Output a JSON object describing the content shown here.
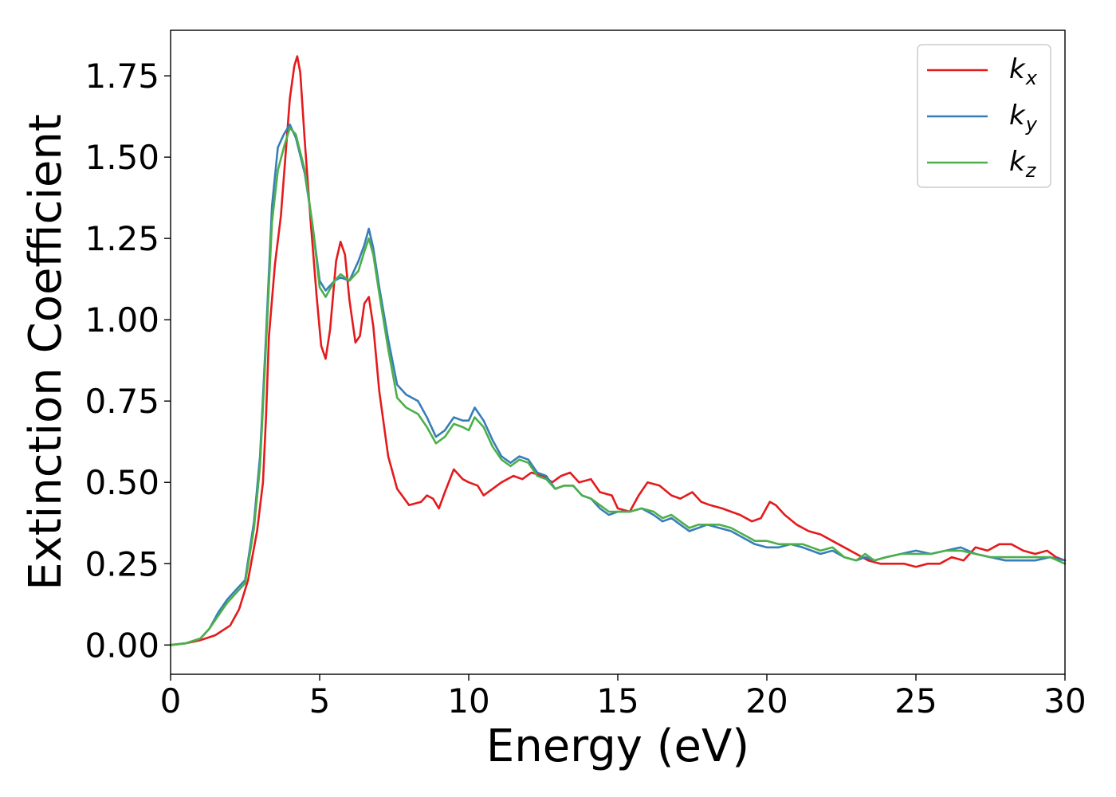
{
  "chart_data": {
    "type": "line",
    "xlabel": "Energy (eV)",
    "ylabel": "Extinction Coefficient",
    "xlim": [
      0,
      30
    ],
    "ylim": [
      -0.09,
      1.89
    ],
    "xticks": [
      0,
      5,
      10,
      15,
      20,
      25,
      30
    ],
    "xtick_labels": [
      "0",
      "5",
      "10",
      "15",
      "20",
      "25",
      "30"
    ],
    "yticks": [
      0.0,
      0.25,
      0.5,
      0.75,
      1.0,
      1.25,
      1.5,
      1.75
    ],
    "ytick_labels": [
      "0.00",
      "0.25",
      "0.50",
      "0.75",
      "1.00",
      "1.25",
      "1.50",
      "1.75"
    ],
    "grid": false,
    "legend_position": "top-right",
    "series": [
      {
        "name": "k_x",
        "label_base": "k",
        "label_sub": "x",
        "color": "#e41a1c",
        "points": [
          [
            0,
            0
          ],
          [
            0.5,
            0.005
          ],
          [
            1,
            0.015
          ],
          [
            1.5,
            0.03
          ],
          [
            2,
            0.06
          ],
          [
            2.3,
            0.11
          ],
          [
            2.6,
            0.2
          ],
          [
            2.9,
            0.35
          ],
          [
            3.1,
            0.5
          ],
          [
            3.2,
            0.7
          ],
          [
            3.3,
            0.95
          ],
          [
            3.5,
            1.17
          ],
          [
            3.7,
            1.32
          ],
          [
            3.85,
            1.5
          ],
          [
            4.0,
            1.68
          ],
          [
            4.15,
            1.78
          ],
          [
            4.25,
            1.81
          ],
          [
            4.35,
            1.76
          ],
          [
            4.5,
            1.55
          ],
          [
            4.7,
            1.3
          ],
          [
            4.9,
            1.07
          ],
          [
            5.05,
            0.92
          ],
          [
            5.2,
            0.88
          ],
          [
            5.35,
            0.97
          ],
          [
            5.55,
            1.18
          ],
          [
            5.7,
            1.24
          ],
          [
            5.85,
            1.2
          ],
          [
            6.0,
            1.06
          ],
          [
            6.2,
            0.93
          ],
          [
            6.35,
            0.95
          ],
          [
            6.5,
            1.05
          ],
          [
            6.65,
            1.07
          ],
          [
            6.8,
            0.98
          ],
          [
            7.0,
            0.78
          ],
          [
            7.3,
            0.58
          ],
          [
            7.6,
            0.48
          ],
          [
            8.0,
            0.43
          ],
          [
            8.4,
            0.44
          ],
          [
            8.6,
            0.46
          ],
          [
            8.8,
            0.45
          ],
          [
            9.0,
            0.42
          ],
          [
            9.2,
            0.47
          ],
          [
            9.5,
            0.54
          ],
          [
            9.8,
            0.51
          ],
          [
            10.0,
            0.5
          ],
          [
            10.3,
            0.49
          ],
          [
            10.5,
            0.46
          ],
          [
            10.8,
            0.48
          ],
          [
            11.1,
            0.5
          ],
          [
            11.5,
            0.52
          ],
          [
            11.8,
            0.51
          ],
          [
            12.1,
            0.53
          ],
          [
            12.5,
            0.52
          ],
          [
            12.8,
            0.5
          ],
          [
            13.1,
            0.52
          ],
          [
            13.4,
            0.53
          ],
          [
            13.7,
            0.5
          ],
          [
            14.1,
            0.51
          ],
          [
            14.4,
            0.47
          ],
          [
            14.8,
            0.46
          ],
          [
            15.0,
            0.42
          ],
          [
            15.4,
            0.41
          ],
          [
            15.7,
            0.46
          ],
          [
            16.0,
            0.5
          ],
          [
            16.4,
            0.49
          ],
          [
            16.8,
            0.46
          ],
          [
            17.1,
            0.45
          ],
          [
            17.5,
            0.47
          ],
          [
            17.8,
            0.44
          ],
          [
            18.1,
            0.43
          ],
          [
            18.5,
            0.42
          ],
          [
            18.8,
            0.41
          ],
          [
            19.1,
            0.4
          ],
          [
            19.5,
            0.38
          ],
          [
            19.8,
            0.39
          ],
          [
            20.1,
            0.44
          ],
          [
            20.3,
            0.43
          ],
          [
            20.6,
            0.4
          ],
          [
            21.0,
            0.37
          ],
          [
            21.4,
            0.35
          ],
          [
            21.8,
            0.34
          ],
          [
            22.2,
            0.32
          ],
          [
            22.6,
            0.3
          ],
          [
            23.0,
            0.28
          ],
          [
            23.4,
            0.26
          ],
          [
            23.8,
            0.25
          ],
          [
            24.2,
            0.25
          ],
          [
            24.6,
            0.25
          ],
          [
            25.0,
            0.24
          ],
          [
            25.4,
            0.25
          ],
          [
            25.8,
            0.25
          ],
          [
            26.2,
            0.27
          ],
          [
            26.6,
            0.26
          ],
          [
            27.0,
            0.3
          ],
          [
            27.4,
            0.29
          ],
          [
            27.8,
            0.31
          ],
          [
            28.2,
            0.31
          ],
          [
            28.6,
            0.29
          ],
          [
            29.0,
            0.28
          ],
          [
            29.4,
            0.29
          ],
          [
            29.7,
            0.27
          ],
          [
            30.0,
            0.26
          ]
        ]
      },
      {
        "name": "k_y",
        "label_base": "k",
        "label_sub": "y",
        "color": "#377eb8",
        "points": [
          [
            0,
            0
          ],
          [
            0.5,
            0.005
          ],
          [
            1,
            0.02
          ],
          [
            1.3,
            0.05
          ],
          [
            1.6,
            0.1
          ],
          [
            1.9,
            0.14
          ],
          [
            2.2,
            0.17
          ],
          [
            2.5,
            0.2
          ],
          [
            2.8,
            0.38
          ],
          [
            3.0,
            0.58
          ],
          [
            3.2,
            0.95
          ],
          [
            3.4,
            1.35
          ],
          [
            3.6,
            1.53
          ],
          [
            3.8,
            1.57
          ],
          [
            4.0,
            1.6
          ],
          [
            4.2,
            1.56
          ],
          [
            4.5,
            1.45
          ],
          [
            4.75,
            1.3
          ],
          [
            5.0,
            1.12
          ],
          [
            5.2,
            1.09
          ],
          [
            5.5,
            1.12
          ],
          [
            5.7,
            1.13
          ],
          [
            6.0,
            1.12
          ],
          [
            6.3,
            1.18
          ],
          [
            6.5,
            1.23
          ],
          [
            6.65,
            1.28
          ],
          [
            6.8,
            1.22
          ],
          [
            7.0,
            1.1
          ],
          [
            7.3,
            0.94
          ],
          [
            7.6,
            0.8
          ],
          [
            7.9,
            0.77
          ],
          [
            8.3,
            0.75
          ],
          [
            8.6,
            0.7
          ],
          [
            8.9,
            0.64
          ],
          [
            9.2,
            0.66
          ],
          [
            9.5,
            0.7
          ],
          [
            9.8,
            0.69
          ],
          [
            10.0,
            0.69
          ],
          [
            10.2,
            0.73
          ],
          [
            10.5,
            0.69
          ],
          [
            10.8,
            0.63
          ],
          [
            11.1,
            0.58
          ],
          [
            11.4,
            0.56
          ],
          [
            11.7,
            0.58
          ],
          [
            12.0,
            0.57
          ],
          [
            12.3,
            0.53
          ],
          [
            12.6,
            0.52
          ],
          [
            12.9,
            0.48
          ],
          [
            13.2,
            0.49
          ],
          [
            13.5,
            0.49
          ],
          [
            13.8,
            0.46
          ],
          [
            14.1,
            0.45
          ],
          [
            14.4,
            0.42
          ],
          [
            14.7,
            0.4
          ],
          [
            15.0,
            0.41
          ],
          [
            15.4,
            0.41
          ],
          [
            15.8,
            0.42
          ],
          [
            16.2,
            0.4
          ],
          [
            16.5,
            0.38
          ],
          [
            16.8,
            0.39
          ],
          [
            17.1,
            0.37
          ],
          [
            17.4,
            0.35
          ],
          [
            17.7,
            0.36
          ],
          [
            18.0,
            0.37
          ],
          [
            18.4,
            0.36
          ],
          [
            18.8,
            0.35
          ],
          [
            19.2,
            0.33
          ],
          [
            19.6,
            0.31
          ],
          [
            20.0,
            0.3
          ],
          [
            20.4,
            0.3
          ],
          [
            20.8,
            0.31
          ],
          [
            21.2,
            0.3
          ],
          [
            21.5,
            0.29
          ],
          [
            21.8,
            0.28
          ],
          [
            22.2,
            0.29
          ],
          [
            22.6,
            0.27
          ],
          [
            23.0,
            0.26
          ],
          [
            23.3,
            0.27
          ],
          [
            23.6,
            0.26
          ],
          [
            24.0,
            0.27
          ],
          [
            24.5,
            0.28
          ],
          [
            25.0,
            0.29
          ],
          [
            25.5,
            0.28
          ],
          [
            26.0,
            0.29
          ],
          [
            26.5,
            0.3
          ],
          [
            27.0,
            0.28
          ],
          [
            27.5,
            0.27
          ],
          [
            28.0,
            0.26
          ],
          [
            28.5,
            0.26
          ],
          [
            29.0,
            0.26
          ],
          [
            29.5,
            0.27
          ],
          [
            30.0,
            0.26
          ]
        ]
      },
      {
        "name": "k_z",
        "label_base": "k",
        "label_sub": "z",
        "color": "#4daf4a",
        "points": [
          [
            0,
            0
          ],
          [
            0.5,
            0.005
          ],
          [
            1,
            0.02
          ],
          [
            1.3,
            0.05
          ],
          [
            1.6,
            0.09
          ],
          [
            1.9,
            0.13
          ],
          [
            2.2,
            0.16
          ],
          [
            2.5,
            0.19
          ],
          [
            2.8,
            0.36
          ],
          [
            3.0,
            0.55
          ],
          [
            3.2,
            0.92
          ],
          [
            3.4,
            1.3
          ],
          [
            3.6,
            1.46
          ],
          [
            3.8,
            1.53
          ],
          [
            4.0,
            1.59
          ],
          [
            4.2,
            1.57
          ],
          [
            4.5,
            1.46
          ],
          [
            4.75,
            1.3
          ],
          [
            5.0,
            1.1
          ],
          [
            5.2,
            1.07
          ],
          [
            5.5,
            1.12
          ],
          [
            5.7,
            1.14
          ],
          [
            6.0,
            1.12
          ],
          [
            6.3,
            1.15
          ],
          [
            6.5,
            1.21
          ],
          [
            6.65,
            1.25
          ],
          [
            6.8,
            1.2
          ],
          [
            7.0,
            1.08
          ],
          [
            7.3,
            0.91
          ],
          [
            7.6,
            0.76
          ],
          [
            7.9,
            0.73
          ],
          [
            8.3,
            0.71
          ],
          [
            8.6,
            0.67
          ],
          [
            8.9,
            0.62
          ],
          [
            9.2,
            0.64
          ],
          [
            9.5,
            0.68
          ],
          [
            9.8,
            0.67
          ],
          [
            10.0,
            0.66
          ],
          [
            10.2,
            0.7
          ],
          [
            10.5,
            0.67
          ],
          [
            10.8,
            0.61
          ],
          [
            11.1,
            0.57
          ],
          [
            11.4,
            0.55
          ],
          [
            11.7,
            0.57
          ],
          [
            12.0,
            0.56
          ],
          [
            12.3,
            0.52
          ],
          [
            12.6,
            0.51
          ],
          [
            12.9,
            0.48
          ],
          [
            13.2,
            0.49
          ],
          [
            13.5,
            0.49
          ],
          [
            13.8,
            0.46
          ],
          [
            14.1,
            0.45
          ],
          [
            14.4,
            0.43
          ],
          [
            14.7,
            0.41
          ],
          [
            15.0,
            0.41
          ],
          [
            15.4,
            0.41
          ],
          [
            15.8,
            0.42
          ],
          [
            16.2,
            0.41
          ],
          [
            16.5,
            0.39
          ],
          [
            16.8,
            0.4
          ],
          [
            17.1,
            0.38
          ],
          [
            17.4,
            0.36
          ],
          [
            17.7,
            0.37
          ],
          [
            18.0,
            0.37
          ],
          [
            18.4,
            0.37
          ],
          [
            18.8,
            0.36
          ],
          [
            19.2,
            0.34
          ],
          [
            19.6,
            0.32
          ],
          [
            20.0,
            0.32
          ],
          [
            20.4,
            0.31
          ],
          [
            20.8,
            0.31
          ],
          [
            21.2,
            0.31
          ],
          [
            21.5,
            0.3
          ],
          [
            21.8,
            0.29
          ],
          [
            22.2,
            0.3
          ],
          [
            22.6,
            0.27
          ],
          [
            23.0,
            0.26
          ],
          [
            23.3,
            0.28
          ],
          [
            23.6,
            0.26
          ],
          [
            24.0,
            0.27
          ],
          [
            24.5,
            0.28
          ],
          [
            25.0,
            0.28
          ],
          [
            25.5,
            0.28
          ],
          [
            26.0,
            0.29
          ],
          [
            26.5,
            0.29
          ],
          [
            27.0,
            0.28
          ],
          [
            27.5,
            0.27
          ],
          [
            28.0,
            0.27
          ],
          [
            28.5,
            0.27
          ],
          [
            29.0,
            0.27
          ],
          [
            29.5,
            0.27
          ],
          [
            30.0,
            0.25
          ]
        ]
      }
    ]
  }
}
